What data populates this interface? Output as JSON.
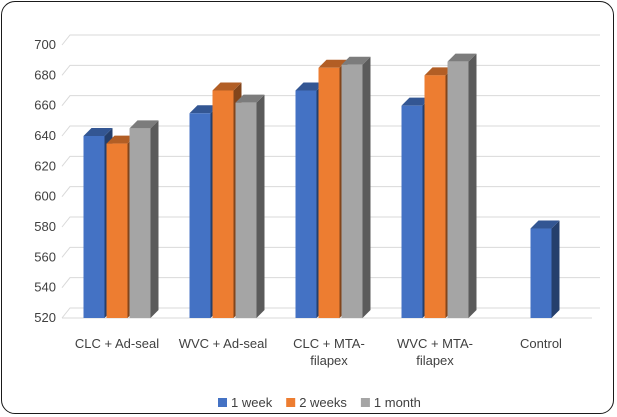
{
  "chart_data": {
    "type": "bar",
    "style": "3d-clustered-column",
    "categories": [
      [
        "CLC + Ad-seal"
      ],
      [
        "WVC + Ad-seal"
      ],
      [
        "CLC + MTA-",
        "filapex"
      ],
      [
        "WVC + MTA-",
        "filapex"
      ],
      [
        "Control"
      ]
    ],
    "series": [
      {
        "name": "1 week",
        "color": "#4472c4",
        "values": [
          640,
          655,
          670,
          660,
          579
        ]
      },
      {
        "name": "2 weeks",
        "color": "#ed7d31",
        "values": [
          635,
          670,
          685,
          680,
          null
        ]
      },
      {
        "name": "1 month",
        "color": "#a5a5a5",
        "values": [
          645,
          662,
          687,
          689,
          null
        ]
      }
    ],
    "ylim": [
      520,
      700
    ],
    "yticks": [
      520,
      540,
      560,
      580,
      600,
      620,
      640,
      660,
      680,
      700
    ],
    "grid": true,
    "legend_position": "bottom",
    "title": "",
    "xlabel": "",
    "ylabel": ""
  }
}
